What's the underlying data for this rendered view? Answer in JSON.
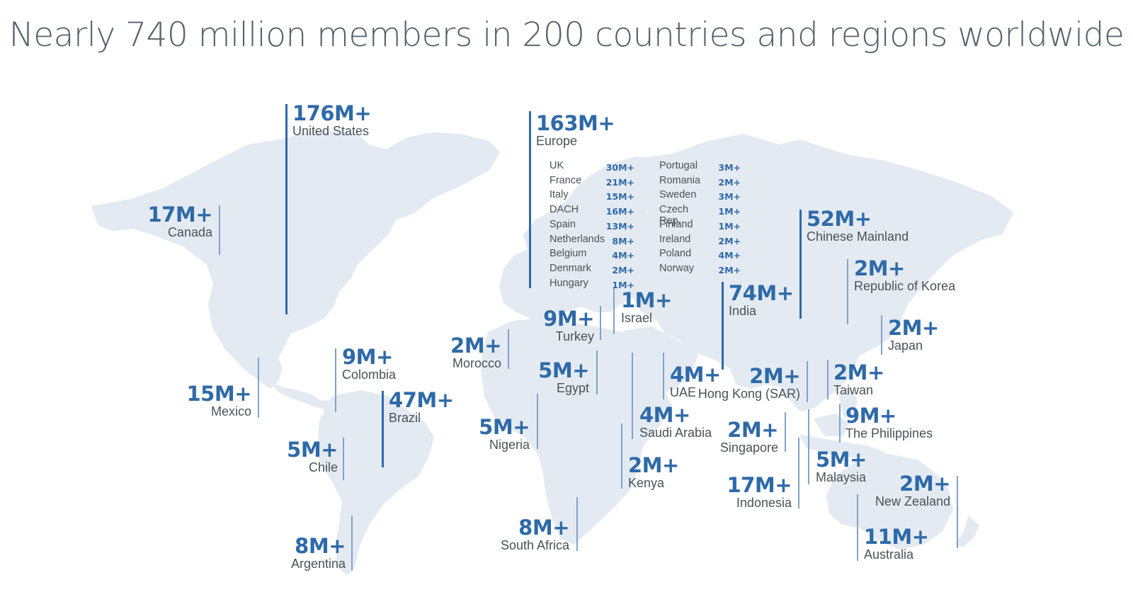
{
  "title": "Nearly 740 million members in 200 countries and regions worldwide",
  "colors": {
    "accent": "#2e6aa8",
    "text": "#4a5259",
    "map": "#e4eaf2",
    "title": "#56616a"
  },
  "regions": {
    "united_states": {
      "value": "176M+",
      "label": "United States"
    },
    "canada": {
      "value": "17M+",
      "label": "Canada"
    },
    "mexico": {
      "value": "15M+",
      "label": "Mexico"
    },
    "colombia": {
      "value": "9M+",
      "label": "Colombia"
    },
    "brazil": {
      "value": "47M+",
      "label": "Brazil"
    },
    "chile": {
      "value": "5M+",
      "label": "Chile"
    },
    "argentina": {
      "value": "8M+",
      "label": "Argentina"
    },
    "europe": {
      "value": "163M+",
      "label": "Europe"
    },
    "morocco": {
      "value": "2M+",
      "label": "Morocco"
    },
    "turkey": {
      "value": "9M+",
      "label": "Turkey"
    },
    "israel": {
      "value": "1M+",
      "label": "Israel"
    },
    "egypt": {
      "value": "5M+",
      "label": "Egypt"
    },
    "nigeria": {
      "value": "5M+",
      "label": "Nigeria"
    },
    "south_africa": {
      "value": "8M+",
      "label": "South Africa"
    },
    "saudi_arabia": {
      "value": "4M+",
      "label": "Saudi Arabia"
    },
    "kenya": {
      "value": "2M+",
      "label": "Kenya"
    },
    "uae": {
      "value": "4M+",
      "label": "UAE"
    },
    "india": {
      "value": "74M+",
      "label": "India"
    },
    "chinese_mainland": {
      "value": "52M+",
      "label": "Chinese Mainland"
    },
    "korea": {
      "value": "2M+",
      "label": "Republic of Korea"
    },
    "japan": {
      "value": "2M+",
      "label": "Japan"
    },
    "hong_kong": {
      "value": "2M+",
      "label": "Hong Kong (SAR)"
    },
    "taiwan": {
      "value": "2M+",
      "label": "Taiwan"
    },
    "philippines": {
      "value": "9M+",
      "label": "The Philippines"
    },
    "singapore": {
      "value": "2M+",
      "label": "Singapore"
    },
    "malaysia": {
      "value": "5M+",
      "label": "Malaysia"
    },
    "indonesia": {
      "value": "17M+",
      "label": "Indonesia"
    },
    "new_zealand": {
      "value": "2M+",
      "label": "New Zealand"
    },
    "australia": {
      "value": "11M+",
      "label": "Australia"
    }
  },
  "europe_breakdown": {
    "left": [
      {
        "name": "UK",
        "value": "30M+"
      },
      {
        "name": "France",
        "value": "21M+"
      },
      {
        "name": "Italy",
        "value": "15M+"
      },
      {
        "name": "DACH",
        "value": "16M+"
      },
      {
        "name": "Spain",
        "value": "13M+"
      },
      {
        "name": "Netherlands",
        "value": "8M+"
      },
      {
        "name": "Belgium",
        "value": "4M+"
      },
      {
        "name": "Denmark",
        "value": "2M+"
      },
      {
        "name": "Hungary",
        "value": "1M+"
      }
    ],
    "right": [
      {
        "name": "Portugal",
        "value": "3M+"
      },
      {
        "name": "Romania",
        "value": "2M+"
      },
      {
        "name": "Sweden",
        "value": "3M+"
      },
      {
        "name": "Czech Rep.",
        "value": "1M+"
      },
      {
        "name": "Finland",
        "value": "1M+"
      },
      {
        "name": "Ireland",
        "value": "2M+"
      },
      {
        "name": "Poland",
        "value": "4M+"
      },
      {
        "name": "Norway",
        "value": "2M+"
      }
    ]
  }
}
